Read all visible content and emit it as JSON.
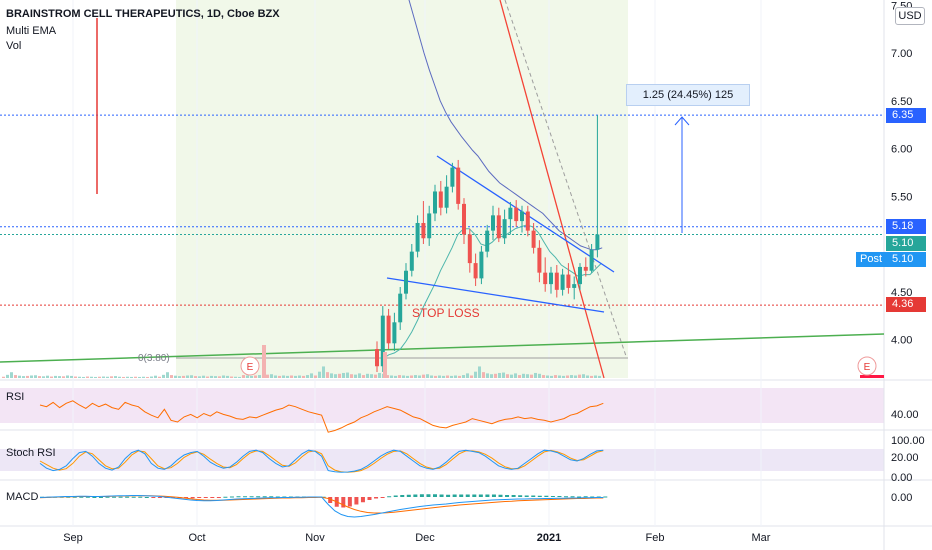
{
  "header": {
    "title": "BRAINSTROM CELL THERAPEUTICS, 1D, Cboe BZX",
    "indicator_1": "Multi EMA",
    "indicator_2": "Vol",
    "currency": "USD"
  },
  "price_tags": {
    "target": "6.35",
    "resistance": "5.18",
    "last": "5.10",
    "post_label": "Post",
    "post": "5.10",
    "stop": "4.36"
  },
  "annotations": {
    "measure": "1.25 (24.45%) 125",
    "stop_loss": "STOP LOSS",
    "fib_label": "0(3.80)",
    "earnings_marker": "E"
  },
  "panes": {
    "rsi": "RSI",
    "stoch": "Stoch RSI",
    "macd": "MACD"
  },
  "colors": {
    "up": "#26a69a",
    "down": "#ef5350",
    "ema_fast": "#4db6ac",
    "ema_slow": "#5c6bc0",
    "trend_green": "#4caf50",
    "wedge": "#2962ff",
    "stop": "#e53935",
    "rsi": "#ff6d00",
    "stoch_k": "#2196f3",
    "stoch_d": "#ff9800",
    "macd": "#2196f3",
    "signal": "#ff6d00"
  },
  "chart_data": {
    "type": "candlestick",
    "x_ticks": [
      "Sep",
      "Oct",
      "Nov",
      "Dec",
      "2021",
      "Feb",
      "Mar"
    ],
    "y_ticks": [
      "7.50",
      "7.00",
      "6.50",
      "6.00",
      "5.50",
      "5.00",
      "4.50",
      "4.00"
    ],
    "ylim": [
      3.6,
      7.5
    ],
    "rsi_ticks": [
      "40.00"
    ],
    "stoch_ticks": [
      "100.00",
      "20.00",
      "0.00"
    ],
    "macd_ticks": [
      "0.00"
    ],
    "candles": [
      {
        "o": 3.9,
        "h": 3.98,
        "l": 3.66,
        "c": 3.72
      },
      {
        "o": 3.72,
        "h": 4.35,
        "l": 3.66,
        "c": 4.25
      },
      {
        "o": 4.25,
        "h": 4.32,
        "l": 3.9,
        "c": 3.96
      },
      {
        "o": 3.96,
        "h": 4.28,
        "l": 3.88,
        "c": 4.18
      },
      {
        "o": 4.18,
        "h": 4.55,
        "l": 4.1,
        "c": 4.48
      },
      {
        "o": 4.48,
        "h": 4.8,
        "l": 4.42,
        "c": 4.72
      },
      {
        "o": 4.72,
        "h": 5.0,
        "l": 4.66,
        "c": 4.92
      },
      {
        "o": 4.92,
        "h": 5.3,
        "l": 4.86,
        "c": 5.22
      },
      {
        "o": 5.22,
        "h": 5.45,
        "l": 5.0,
        "c": 5.06
      },
      {
        "o": 5.06,
        "h": 5.4,
        "l": 4.98,
        "c": 5.32
      },
      {
        "o": 5.32,
        "h": 5.62,
        "l": 5.24,
        "c": 5.55
      },
      {
        "o": 5.55,
        "h": 5.66,
        "l": 5.3,
        "c": 5.38
      },
      {
        "o": 5.38,
        "h": 5.72,
        "l": 5.32,
        "c": 5.6
      },
      {
        "o": 5.6,
        "h": 5.85,
        "l": 5.54,
        "c": 5.8
      },
      {
        "o": 5.8,
        "h": 5.88,
        "l": 5.36,
        "c": 5.42
      },
      {
        "o": 5.42,
        "h": 5.48,
        "l": 5.0,
        "c": 5.1
      },
      {
        "o": 5.1,
        "h": 5.16,
        "l": 4.7,
        "c": 4.8
      },
      {
        "o": 4.8,
        "h": 4.9,
        "l": 4.56,
        "c": 4.64
      },
      {
        "o": 4.64,
        "h": 4.98,
        "l": 4.58,
        "c": 4.92
      },
      {
        "o": 4.92,
        "h": 5.2,
        "l": 4.86,
        "c": 5.14
      },
      {
        "o": 5.14,
        "h": 5.4,
        "l": 5.04,
        "c": 5.3
      },
      {
        "o": 5.3,
        "h": 5.38,
        "l": 5.02,
        "c": 5.06
      },
      {
        "o": 5.06,
        "h": 5.36,
        "l": 5.0,
        "c": 5.26
      },
      {
        "o": 5.26,
        "h": 5.44,
        "l": 5.1,
        "c": 5.38
      },
      {
        "o": 5.38,
        "h": 5.46,
        "l": 5.18,
        "c": 5.24
      },
      {
        "o": 5.24,
        "h": 5.4,
        "l": 5.12,
        "c": 5.34
      },
      {
        "o": 5.34,
        "h": 5.4,
        "l": 5.08,
        "c": 5.14
      },
      {
        "o": 5.14,
        "h": 5.22,
        "l": 4.9,
        "c": 4.96
      },
      {
        "o": 4.96,
        "h": 5.04,
        "l": 4.6,
        "c": 4.7
      },
      {
        "o": 4.7,
        "h": 4.86,
        "l": 4.5,
        "c": 4.58
      },
      {
        "o": 4.58,
        "h": 4.76,
        "l": 4.48,
        "c": 4.7
      },
      {
        "o": 4.7,
        "h": 4.78,
        "l": 4.44,
        "c": 4.52
      },
      {
        "o": 4.52,
        "h": 4.74,
        "l": 4.46,
        "c": 4.68
      },
      {
        "o": 4.68,
        "h": 4.8,
        "l": 4.48,
        "c": 4.54
      },
      {
        "o": 4.54,
        "h": 4.66,
        "l": 4.42,
        "c": 4.58
      },
      {
        "o": 4.58,
        "h": 4.8,
        "l": 4.52,
        "c": 4.76
      },
      {
        "o": 4.76,
        "h": 4.86,
        "l": 4.66,
        "c": 4.72
      },
      {
        "o": 4.72,
        "h": 5.0,
        "l": 4.7,
        "c": 4.94
      },
      {
        "o": 4.94,
        "h": 6.35,
        "l": 4.86,
        "c": 5.1
      }
    ],
    "ema_fast": [
      3.8,
      3.84,
      3.86,
      3.9,
      3.98,
      4.08,
      4.2,
      4.34,
      4.46,
      4.58,
      4.72,
      4.84,
      4.96,
      5.1,
      5.16,
      5.16,
      5.1,
      5.0,
      4.98,
      5.02,
      5.08,
      5.08,
      5.12,
      5.16,
      5.18,
      5.2,
      5.18,
      5.12,
      5.02,
      4.92,
      4.86,
      4.78,
      4.74,
      4.7,
      4.66,
      4.68,
      4.68,
      4.74,
      4.8
    ],
    "ema_slow": [
      8.0,
      7.8,
      7.6,
      7.4,
      7.2,
      7.0,
      6.82,
      6.66,
      6.5,
      6.38,
      6.28,
      6.2,
      6.12,
      6.05,
      5.98,
      5.92,
      5.84,
      5.76,
      5.7,
      5.64,
      5.6,
      5.56,
      5.52,
      5.48,
      5.44,
      5.4,
      5.36,
      5.32,
      5.26,
      5.2,
      5.14,
      5.1,
      5.06,
      5.02,
      4.98,
      4.96,
      4.94,
      4.94,
      4.96
    ],
    "volume": [
      12,
      30,
      55,
      28,
      22,
      18,
      20,
      24,
      26,
      18,
      16,
      22,
      14,
      20,
      18,
      16,
      24,
      20,
      14,
      12,
      10,
      14,
      12,
      10,
      12,
      14,
      12,
      16,
      18,
      12,
      10,
      12,
      10,
      12,
      10,
      12,
      10,
      14,
      22
    ],
    "rsi": [
      60,
      58,
      63,
      57,
      62,
      65,
      60,
      56,
      62,
      58,
      61,
      57,
      55,
      63,
      60,
      58,
      52,
      48,
      45,
      55,
      42,
      40,
      46,
      49,
      45,
      50,
      47,
      52,
      49,
      47,
      44,
      43,
      46,
      45,
      48,
      51,
      54,
      56,
      60,
      58,
      55,
      52,
      50,
      48,
      28,
      30,
      33,
      37,
      40,
      45,
      48,
      52,
      55,
      58,
      56,
      54,
      50,
      46,
      44,
      40,
      36,
      34,
      33,
      36,
      38,
      40,
      44,
      42,
      40,
      38,
      41,
      43,
      44,
      46,
      44,
      45,
      43,
      42,
      40,
      42,
      44,
      48,
      50,
      54,
      58,
      59,
      62
    ],
    "stoch_k": [
      40,
      20,
      10,
      15,
      30,
      60,
      85,
      90,
      70,
      40,
      20,
      12,
      25,
      60,
      85,
      95,
      80,
      40,
      20,
      15,
      30,
      55,
      75,
      85,
      90,
      70,
      45,
      30,
      20,
      25,
      45,
      70,
      90,
      95,
      85,
      60,
      40,
      25,
      30,
      55,
      80,
      95,
      90,
      70,
      10,
      5,
      3,
      4,
      8,
      15,
      30,
      50,
      70,
      85,
      95,
      90,
      70,
      50,
      30,
      20,
      15,
      25,
      45,
      70,
      90,
      95,
      90,
      85,
      70,
      50,
      30,
      20,
      15,
      20,
      40,
      60,
      80,
      95,
      92,
      85,
      70,
      55,
      50,
      60,
      78,
      92,
      95
    ],
    "stoch_d": [
      50,
      35,
      20,
      12,
      18,
      40,
      70,
      88,
      80,
      55,
      30,
      18,
      20,
      45,
      75,
      92,
      88,
      60,
      30,
      18,
      22,
      40,
      65,
      80,
      88,
      78,
      58,
      40,
      25,
      22,
      35,
      60,
      82,
      92,
      90,
      72,
      52,
      32,
      28,
      42,
      68,
      88,
      92,
      80,
      30,
      12,
      5,
      3,
      5,
      10,
      22,
      40,
      60,
      78,
      90,
      92,
      80,
      60,
      40,
      25,
      18,
      20,
      35,
      58,
      80,
      92,
      92,
      88,
      78,
      62,
      42,
      26,
      18,
      18,
      30,
      50,
      70,
      88,
      94,
      88,
      78,
      62,
      52,
      55,
      70,
      86,
      93
    ],
    "macd": [
      -0.02,
      -0.01,
      0.0,
      0.01,
      0.02,
      0.02,
      0.03,
      0.03,
      0.02,
      0.02,
      0.03,
      0.04,
      0.05,
      0.05,
      0.06,
      0.06,
      0.05,
      0.04,
      0.03,
      0.0,
      -0.03,
      -0.06,
      -0.09,
      -0.12,
      -0.14,
      -0.15,
      -0.15,
      -0.14,
      -0.12,
      -0.1,
      -0.08,
      -0.07,
      -0.06,
      -0.05,
      -0.04,
      -0.03,
      -0.03,
      -0.02,
      -0.02,
      -0.01,
      -0.01,
      0.0,
      0.0,
      0.0,
      -0.3,
      -0.55,
      -0.7,
      -0.78,
      -0.8,
      -0.78,
      -0.74,
      -0.7,
      -0.65,
      -0.6,
      -0.55,
      -0.5,
      -0.46,
      -0.42,
      -0.38,
      -0.35,
      -0.32,
      -0.3,
      -0.28,
      -0.25,
      -0.22,
      -0.2,
      -0.18,
      -0.16,
      -0.14,
      -0.12,
      -0.11,
      -0.1,
      -0.09,
      -0.08,
      -0.08,
      -0.07,
      -0.07,
      -0.06,
      -0.06,
      -0.05,
      -0.05,
      -0.04,
      -0.04,
      -0.03,
      -0.03,
      -0.02,
      -0.02
    ],
    "macd_signal": [
      -0.03,
      -0.02,
      -0.01,
      0.0,
      0.01,
      0.01,
      0.02,
      0.02,
      0.02,
      0.02,
      0.02,
      0.03,
      0.04,
      0.04,
      0.05,
      0.05,
      0.05,
      0.05,
      0.04,
      0.03,
      0.01,
      -0.01,
      -0.04,
      -0.07,
      -0.1,
      -0.12,
      -0.13,
      -0.13,
      -0.13,
      -0.12,
      -0.11,
      -0.1,
      -0.09,
      -0.08,
      -0.07,
      -0.06,
      -0.05,
      -0.04,
      -0.04,
      -0.03,
      -0.03,
      -0.02,
      -0.02,
      -0.01,
      -0.06,
      -0.16,
      -0.28,
      -0.4,
      -0.5,
      -0.57,
      -0.62,
      -0.64,
      -0.64,
      -0.63,
      -0.61,
      -0.58,
      -0.55,
      -0.52,
      -0.49,
      -0.46,
      -0.43,
      -0.4,
      -0.37,
      -0.35,
      -0.32,
      -0.3,
      -0.28,
      -0.26,
      -0.24,
      -0.22,
      -0.2,
      -0.18,
      -0.17,
      -0.15,
      -0.14,
      -0.13,
      -0.12,
      -0.11,
      -0.1,
      -0.09,
      -0.08,
      -0.07,
      -0.06,
      -0.06,
      -0.05,
      -0.04,
      -0.04
    ]
  }
}
